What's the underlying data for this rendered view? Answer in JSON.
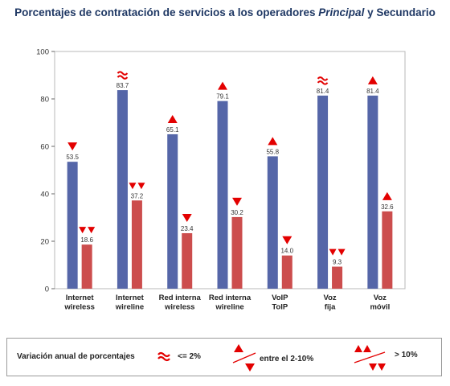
{
  "title": {
    "prefix": "Porcentajes de contratación de servicios a los operadores ",
    "italic": "Principal",
    "suffix": " y Secundario"
  },
  "chart_data": {
    "type": "bar",
    "categories": [
      [
        "Internet",
        "wireless"
      ],
      [
        "Internet",
        "wireline"
      ],
      [
        "Red interna",
        "wireless"
      ],
      [
        "Red interna",
        "wireline"
      ],
      [
        "VoIP",
        "ToIP"
      ],
      [
        "Voz",
        "fija"
      ],
      [
        "Voz",
        "móvil"
      ]
    ],
    "series": [
      {
        "values": [
          53.5,
          83.7,
          65.1,
          79.1,
          55.8,
          81.4,
          81.4
        ],
        "labels": [
          "53.5",
          "83.7",
          "65.1",
          "79.1",
          "55.8",
          "81.4",
          "81.4"
        ],
        "markers": [
          "down",
          "approx",
          "up",
          "up",
          "up",
          "approx",
          "up"
        ]
      },
      {
        "values": [
          18.6,
          37.2,
          23.4,
          30.2,
          14.0,
          9.3,
          32.6
        ],
        "labels": [
          "18.6",
          "37.2",
          "23.4",
          "30.2",
          "14.0",
          "9.3",
          "32.6"
        ],
        "markers": [
          "down2",
          "down2",
          "down",
          "down",
          "down",
          "down2",
          "up"
        ]
      }
    ],
    "colors": {
      "principal": "#5566a8",
      "secundario": "#cc4d4d",
      "marker": "#e30000"
    },
    "ylim": [
      0,
      100
    ],
    "yticks": [
      0,
      20,
      40,
      60,
      80,
      100
    ],
    "grid": false
  },
  "legend": {
    "title": "Variación anual de porcentajes",
    "items": [
      {
        "icon": "approx",
        "label": "<= 2%"
      },
      {
        "icon": "single-arrows",
        "label": "entre el 2-10%"
      },
      {
        "icon": "double-arrows",
        "label": "> 10%"
      }
    ]
  }
}
